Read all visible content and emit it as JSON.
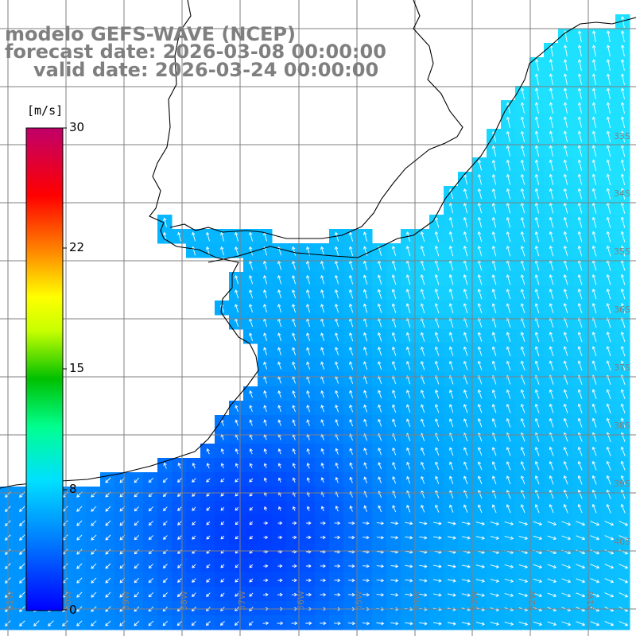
{
  "title": {
    "model": "modelo GEFS-WAVE (NCEP)",
    "forecast": "forecast date: 2026-03-08 00:00:00",
    "valid": "valid date: 2026-03-24 00:00:00"
  },
  "colorbar": {
    "unit": "[m/s]",
    "ticks": [
      "30",
      "22",
      "15",
      "8",
      "0"
    ],
    "colors": [
      "#0000ff",
      "#0090ff",
      "#00e0ff",
      "#00ff80",
      "#00c000",
      "#ffff00",
      "#ff8000",
      "#ff0000",
      "#c0006a"
    ]
  },
  "map": {
    "lat_labels": [
      "33S",
      "34S",
      "35S",
      "36S",
      "37S",
      "38S",
      "39S",
      "40S"
    ],
    "lon_labels": [
      "61W",
      "60W",
      "59W",
      "58W",
      "57W",
      "56W",
      "55W",
      "54W",
      "53W",
      "52W",
      "51W"
    ],
    "colors": {
      "land": "#ffffff",
      "coast": "#000000",
      "grid": "#7f7f7f",
      "deep_blue": "#0040ff",
      "mid_blue": "#0080ff",
      "light_cyan": "#1ad0ff",
      "arrow": "#ffffff"
    }
  }
}
